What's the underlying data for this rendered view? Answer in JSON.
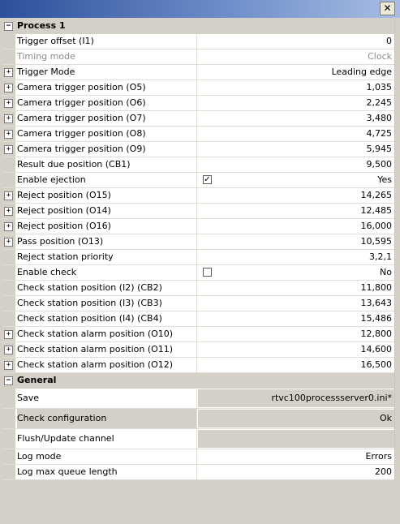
{
  "window": {
    "close_glyph": "✕"
  },
  "categories": [
    {
      "label": "Process 1",
      "toggle": "−"
    },
    {
      "label": "General",
      "toggle": "−"
    }
  ],
  "process_rows": [
    {
      "expandable": false,
      "label": "Trigger offset (I1)",
      "value": "0"
    },
    {
      "expandable": false,
      "label": "Timing mode",
      "value": "Clock",
      "disabled": true
    },
    {
      "expandable": true,
      "label": "Trigger Mode",
      "value": "Leading edge"
    },
    {
      "expandable": true,
      "label": "Camera trigger position (O5)",
      "value": "1,035"
    },
    {
      "expandable": true,
      "label": "Camera trigger position (O6)",
      "value": "2,245"
    },
    {
      "expandable": true,
      "label": "Camera trigger position (O7)",
      "value": "3,480"
    },
    {
      "expandable": true,
      "label": "Camera trigger position (O8)",
      "value": "4,725"
    },
    {
      "expandable": true,
      "label": "Camera trigger position (O9)",
      "value": "5,945"
    },
    {
      "expandable": false,
      "label": "Result due position (CB1)",
      "value": "9,500"
    },
    {
      "expandable": false,
      "label": "Enable ejection",
      "value": "Yes",
      "checkbox": true,
      "checked": true
    },
    {
      "expandable": true,
      "label": "Reject position (O15)",
      "value": "14,265"
    },
    {
      "expandable": true,
      "label": "Reject position (O14)",
      "value": "12,485"
    },
    {
      "expandable": true,
      "label": "Reject position (O16)",
      "value": "16,000"
    },
    {
      "expandable": true,
      "label": "Pass position (O13)",
      "value": "10,595"
    },
    {
      "expandable": false,
      "label": "Reject station priority",
      "value": "3,2,1"
    },
    {
      "expandable": false,
      "label": "Enable check",
      "value": "No",
      "checkbox": true,
      "checked": false
    },
    {
      "expandable": false,
      "label": "Check station position (I2) (CB2)",
      "value": "11,800"
    },
    {
      "expandable": false,
      "label": "Check station position (I3) (CB3)",
      "value": "13,643"
    },
    {
      "expandable": false,
      "label": "Check station position (I4) (CB4)",
      "value": "15,486"
    },
    {
      "expandable": true,
      "label": "Check station alarm position (O10)",
      "value": "12,800"
    },
    {
      "expandable": true,
      "label": "Check station alarm position (O11)",
      "value": "14,600"
    },
    {
      "expandable": true,
      "label": "Check station alarm position (O12)",
      "value": "16,500"
    }
  ],
  "general_rows": [
    {
      "label": "Save",
      "value": "rtvc100processserver0.ini*",
      "button": true
    },
    {
      "label": "Check configuration",
      "value": "Ok",
      "button": true,
      "selected": true
    },
    {
      "label": "Flush/Update channel",
      "value": "",
      "button": true
    },
    {
      "label": "Log mode",
      "value": "Errors"
    },
    {
      "label": "Log max queue length",
      "value": "200"
    }
  ],
  "glyphs": {
    "expand": "+",
    "check": "✓"
  }
}
